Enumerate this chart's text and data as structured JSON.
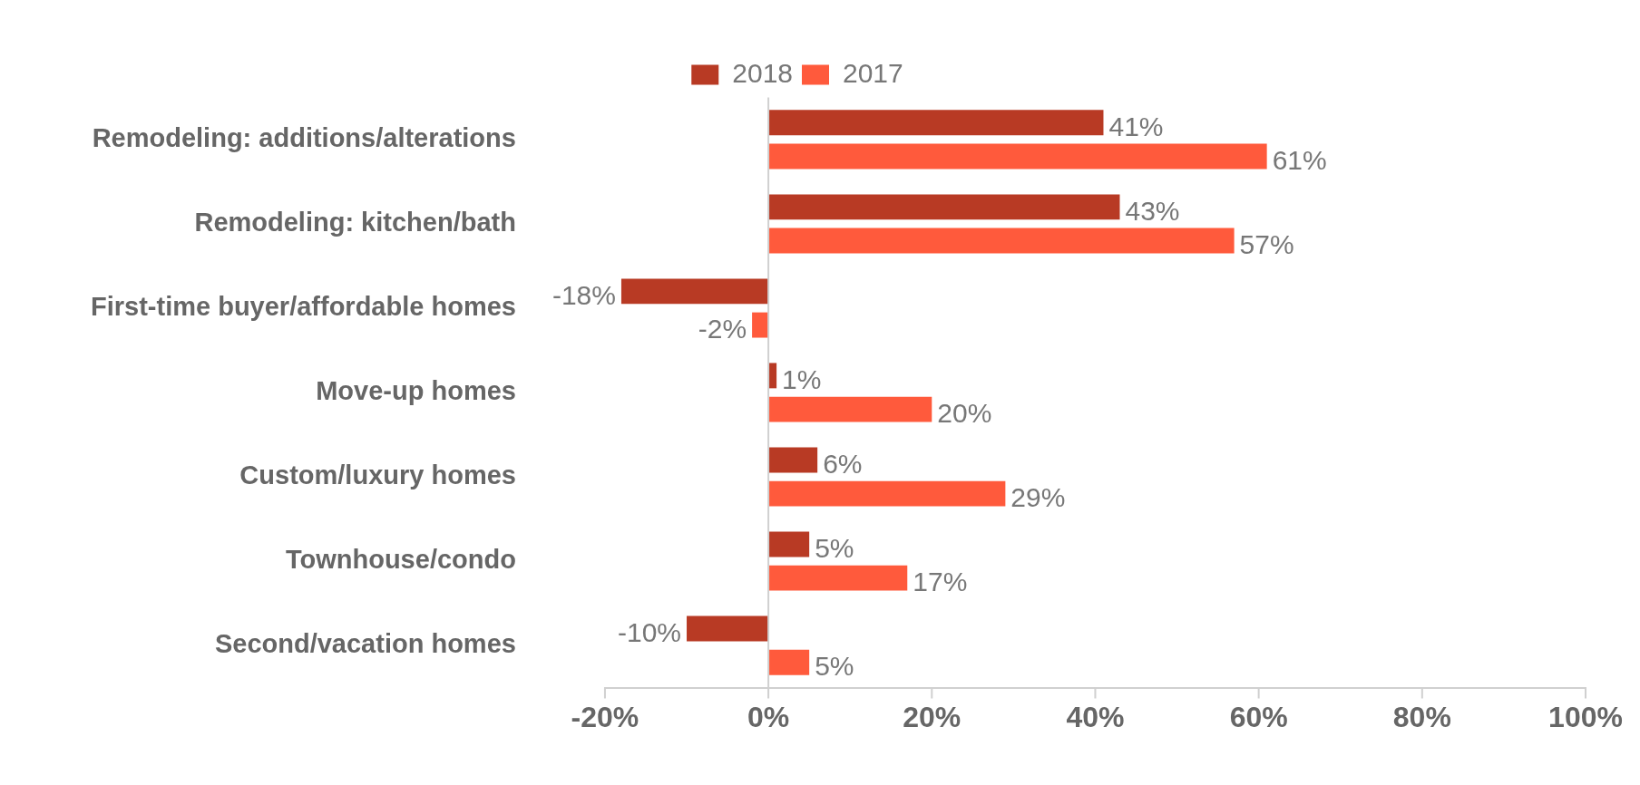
{
  "chart_data": {
    "type": "bar",
    "orientation": "horizontal",
    "categories": [
      "Remodeling: additions/alterations",
      "Remodeling: kitchen/bath",
      "First-time buyer/affordable homes",
      "Move-up homes",
      "Custom/luxury homes",
      "Townhouse/condo",
      "Second/vacation homes"
    ],
    "series": [
      {
        "name": "2018",
        "color": "#b83a24",
        "values": [
          41,
          43,
          -18,
          1,
          6,
          5,
          -10
        ],
        "value_labels": [
          "41%",
          "43%",
          "-18%",
          "1%",
          "6%",
          "5%",
          "-10%"
        ]
      },
      {
        "name": "2017",
        "color": "#ff5a3c",
        "values": [
          61,
          57,
          -2,
          20,
          29,
          17,
          5
        ],
        "value_labels": [
          "61%",
          "57%",
          "-2%",
          "20%",
          "29%",
          "17%",
          "5%"
        ]
      }
    ],
    "xlim": [
      -20,
      100
    ],
    "xticks": [
      {
        "value": -20,
        "label": "-20%"
      },
      {
        "value": 0,
        "label": "0%"
      },
      {
        "value": 20,
        "label": "20%"
      },
      {
        "value": 40,
        "label": "40%"
      },
      {
        "value": 60,
        "label": "60%"
      },
      {
        "value": 80,
        "label": "80%"
      },
      {
        "value": 100,
        "label": "100%"
      }
    ],
    "legend": "top"
  }
}
